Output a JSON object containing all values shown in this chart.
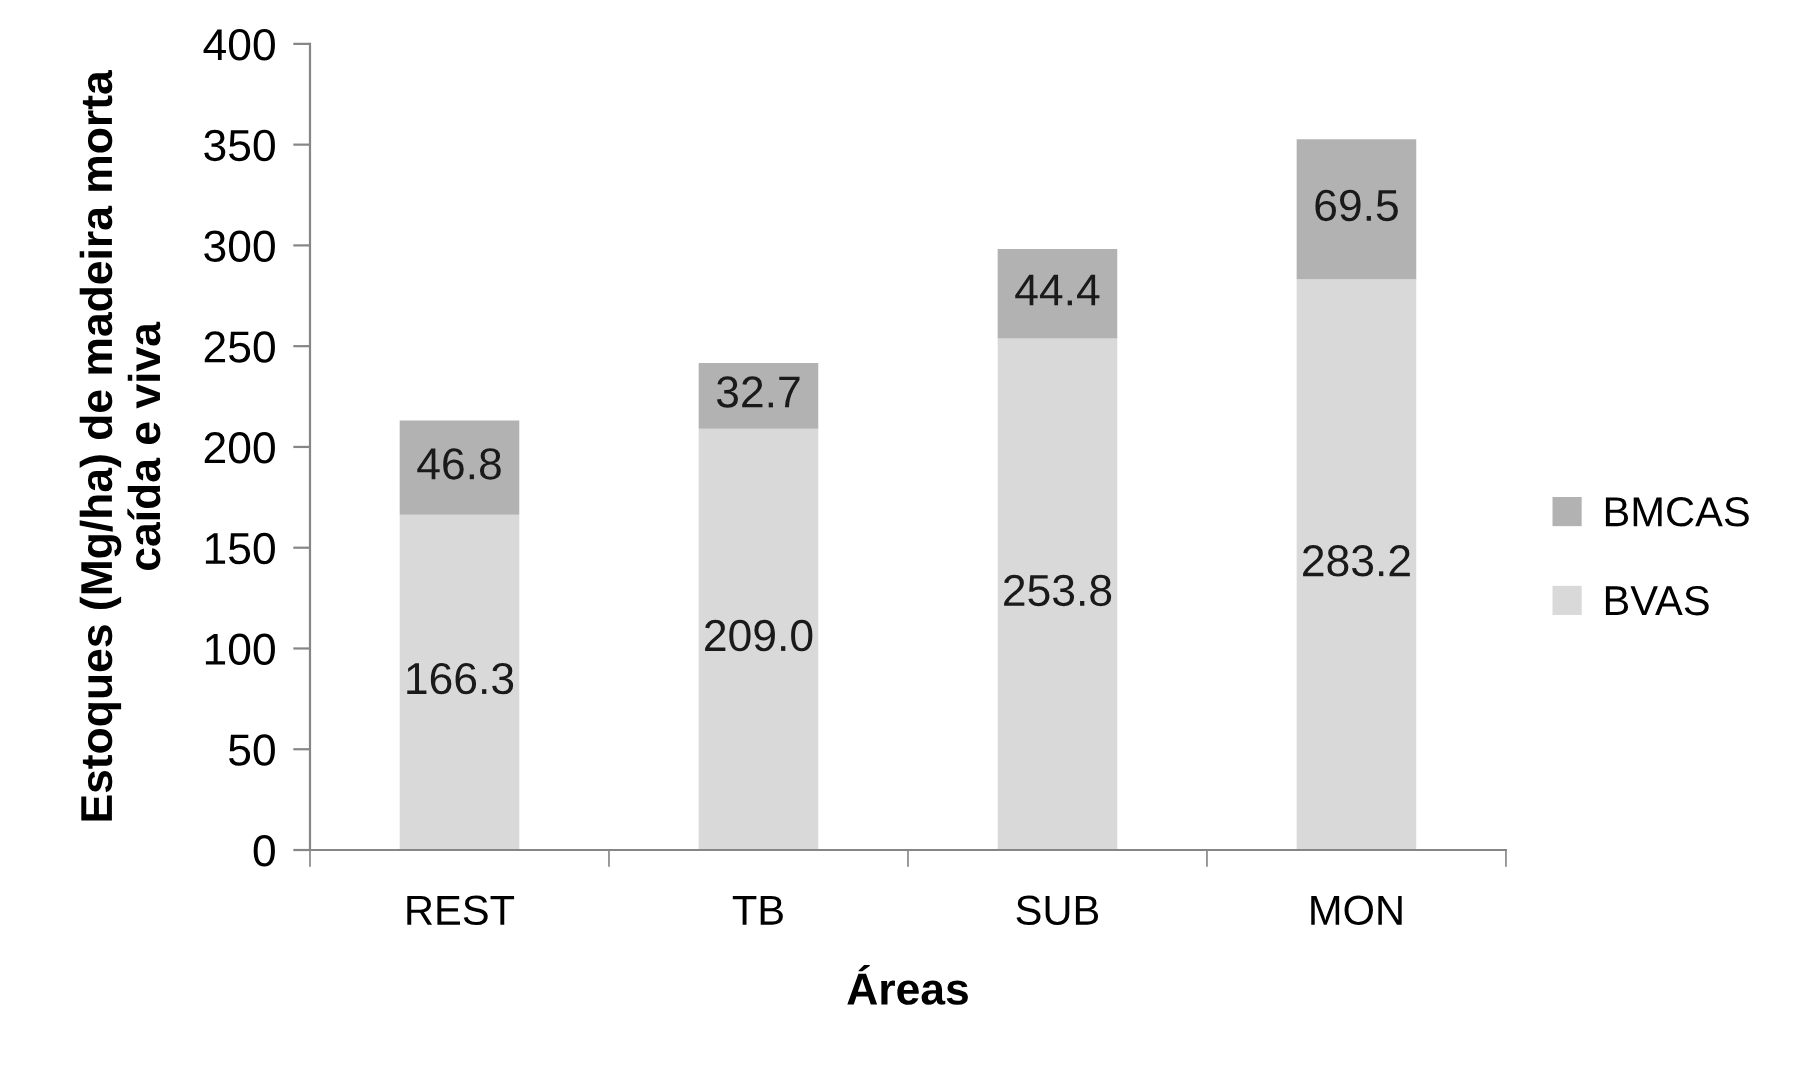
{
  "chart_data": {
    "type": "bar",
    "stacked": true,
    "xlabel": "Áreas",
    "ylabel": "Estoques (Mg/ha) de madeira morta\ncaída e viva",
    "categories": [
      "REST",
      "TB",
      "SUB",
      "MON"
    ],
    "series": [
      {
        "name": "BVAS",
        "color": "#d9d9d9",
        "values": [
          166.3,
          209.0,
          253.8,
          283.2
        ],
        "value_labels": [
          "166.3",
          "209.0",
          "253.8",
          "283.2"
        ]
      },
      {
        "name": "BMCAS",
        "color": "#b2b2b2",
        "values": [
          46.8,
          32.7,
          44.4,
          69.5
        ],
        "value_labels": [
          "46.8",
          "32.7",
          "44.4",
          "69.5"
        ]
      }
    ],
    "ylim": [
      0,
      400
    ],
    "yticks": [
      0,
      50,
      100,
      150,
      200,
      250,
      300,
      350,
      400
    ],
    "grid": false,
    "legend": "right"
  }
}
